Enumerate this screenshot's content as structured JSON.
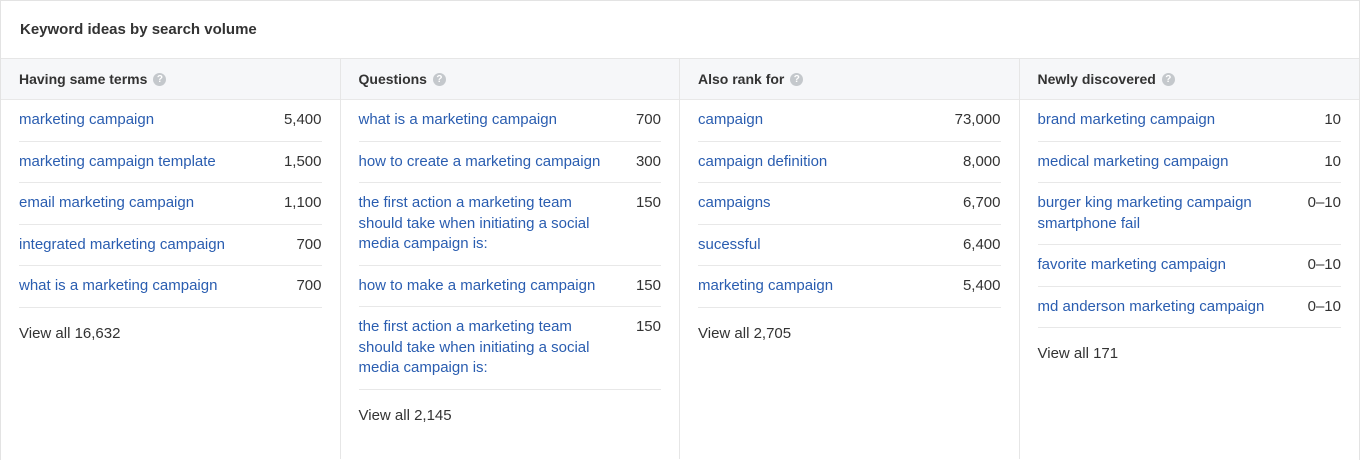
{
  "panel": {
    "title": "Keyword ideas by search volume"
  },
  "columns": [
    {
      "title": "Having same terms",
      "rows": [
        {
          "keyword": "marketing campaign",
          "volume": "5,400"
        },
        {
          "keyword": "marketing campaign template",
          "volume": "1,500"
        },
        {
          "keyword": "email marketing campaign",
          "volume": "1,100"
        },
        {
          "keyword": "integrated marketing campaign",
          "volume": "700"
        },
        {
          "keyword": "what is a marketing campaign",
          "volume": "700"
        }
      ],
      "view_all": "View all 16,632"
    },
    {
      "title": "Questions",
      "rows": [
        {
          "keyword": "what is a marketing campaign",
          "volume": "700"
        },
        {
          "keyword": "how to create a marketing campaign",
          "volume": "300"
        },
        {
          "keyword": "the first action a marketing team should take when initiating a social media campaign is:",
          "volume": "150"
        },
        {
          "keyword": "how to make a marketing campaign",
          "volume": "150"
        },
        {
          "keyword": "the first action a marketing team should take when initiating a social media campaign is:",
          "volume": "150"
        }
      ],
      "view_all": "View all 2,145"
    },
    {
      "title": "Also rank for",
      "rows": [
        {
          "keyword": "campaign",
          "volume": "73,000"
        },
        {
          "keyword": "campaign definition",
          "volume": "8,000"
        },
        {
          "keyword": "campaigns",
          "volume": "6,700"
        },
        {
          "keyword": "sucessful",
          "volume": "6,400"
        },
        {
          "keyword": "marketing campaign",
          "volume": "5,400"
        }
      ],
      "view_all": "View all 2,705"
    },
    {
      "title": "Newly discovered",
      "rows": [
        {
          "keyword": "brand marketing campaign",
          "volume": "10"
        },
        {
          "keyword": "medical marketing campaign",
          "volume": "10"
        },
        {
          "keyword": "burger king marketing campaign smartphone fail",
          "volume": "0–10"
        },
        {
          "keyword": "favorite marketing campaign",
          "volume": "0–10"
        },
        {
          "keyword": "md anderson marketing campaign",
          "volume": "0–10"
        }
      ],
      "view_all": "View all 171"
    }
  ],
  "icons": {
    "help": "help-circle-icon",
    "help_glyph": "?"
  },
  "colors": {
    "link": "#2a5db0",
    "header_bg": "#f6f7f9",
    "border": "#e6e6e6"
  }
}
